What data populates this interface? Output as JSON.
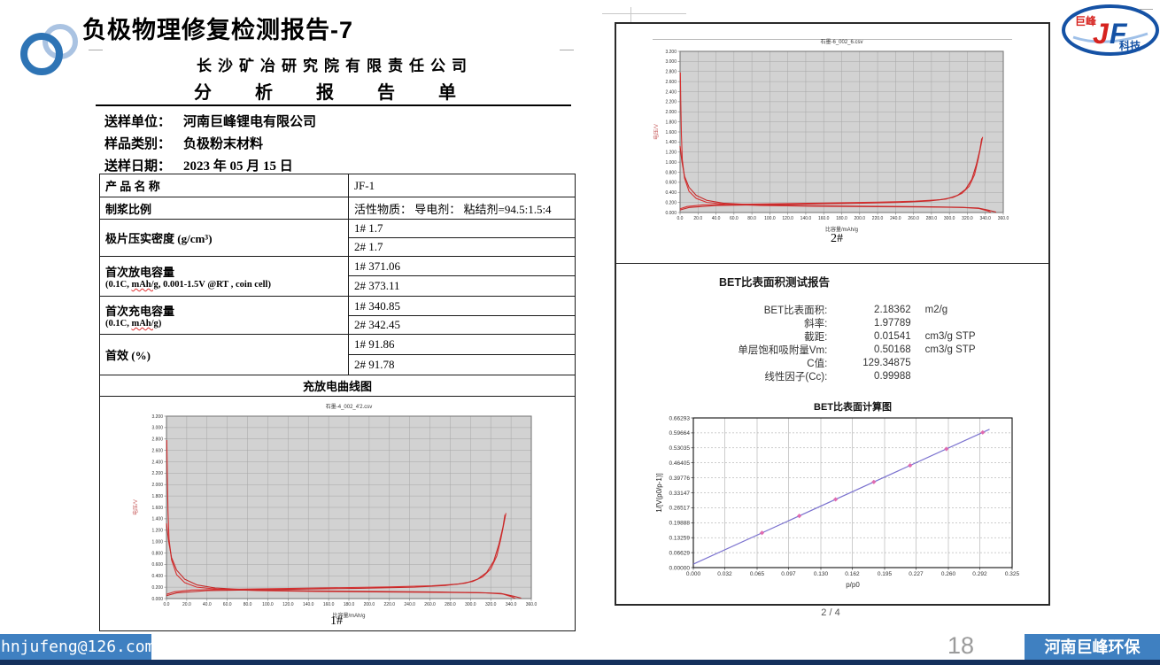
{
  "slide": {
    "title": "负极物理修复检测报告-7",
    "page_number": "18",
    "footer_email": "hnjufeng@126.com",
    "footer_company": "河南巨峰环保",
    "logo": {
      "top": "巨峰",
      "j": "J",
      "f": "F",
      "bottom": "科技"
    }
  },
  "report": {
    "company": "长沙矿冶研究院有限责任公司",
    "doc_title": "分 析 报 告 单",
    "fields": [
      {
        "label": "送样单位：",
        "value": "河南巨峰锂电有限公司"
      },
      {
        "label": "样品类别：",
        "value": "负极粉末材料"
      },
      {
        "label": "送样日期：",
        "value": "2023 年 05 月 15 日"
      }
    ],
    "table": {
      "rows": [
        {
          "label": "产 品 名 称",
          "v1": "JF-1"
        },
        {
          "label": "制浆比例",
          "v1": "活性物质： 导电剂： 粘结剂=94.5:1.5:4"
        },
        {
          "label": "极片压实密度 (g/cm³)",
          "v1": "1# 1.7",
          "v2": "2# 1.7"
        },
        {
          "label": "首次放电容量",
          "sub": [
            "(0.1C, ",
            "mAh/g",
            ", 0.001-1.5V @RT , coin cell)"
          ],
          "v1": "1# 371.06",
          "v2": "2# 373.11"
        },
        {
          "label": "首次充电容量",
          "sub": [
            "(0.1C, ",
            "mAh/g",
            ")"
          ],
          "v1": "1# 340.85",
          "v2": "2# 342.45"
        },
        {
          "label": "首效 (%)",
          "v1": "1# 91.86",
          "v2": "2# 91.78"
        }
      ],
      "section_header": "充放电曲线图"
    },
    "page2": {
      "bet_title": "BET比表面积测试报告",
      "bet_rows": [
        {
          "label": "BET比表面积:",
          "value": "2.18362",
          "unit": "m2/g"
        },
        {
          "label": "斜率:",
          "value": "1.97789",
          "unit": ""
        },
        {
          "label": "截距:",
          "value": "0.01541",
          "unit": "cm3/g STP"
        },
        {
          "label": "单层饱和吸附量Vm:",
          "value": "0.50168",
          "unit": "cm3/g STP"
        },
        {
          "label": "C值:",
          "value": "129.34875",
          "unit": ""
        },
        {
          "label": "线性因子(Cc):",
          "value": "0.99988",
          "unit": ""
        }
      ],
      "footer": "2 / 4"
    }
  },
  "chart_data": [
    {
      "id": "cycle-chart-1",
      "type": "line",
      "title": "石墨-4_002_4'2.csv",
      "caption": "1#",
      "xlabel": "比容量/mAh/g",
      "ylabel": "电压/V",
      "xlim": [
        0,
        360
      ],
      "ylim": [
        0,
        3.2
      ],
      "xticks": [
        "0.0",
        "20.0",
        "40.0",
        "60.0",
        "80.0",
        "100.0",
        "120.0",
        "140.0",
        "160.0",
        "180.0",
        "200.0",
        "220.0",
        "240.0",
        "260.0",
        "280.0",
        "300.0",
        "320.0",
        "340.0",
        "360.0"
      ],
      "yticks": [
        "0.000",
        "0.200",
        "0.400",
        "0.600",
        "0.800",
        "1.000",
        "1.200",
        "1.400",
        "1.600",
        "1.800",
        "2.000",
        "2.200",
        "2.400",
        "2.600",
        "2.800",
        "3.000",
        "3.200"
      ],
      "series": [
        {
          "name": "discharge-cycle1",
          "color": "#d73030",
          "points": [
            [
              0.3,
              2.78
            ],
            [
              0.8,
              2.2
            ],
            [
              1.5,
              1.55
            ],
            [
              2.5,
              1.05
            ],
            [
              5,
              0.68
            ],
            [
              10,
              0.42
            ],
            [
              18,
              0.28
            ],
            [
              30,
              0.2
            ],
            [
              50,
              0.165
            ],
            [
              90,
              0.14
            ],
            [
              150,
              0.125
            ],
            [
              220,
              0.115
            ],
            [
              280,
              0.108
            ],
            [
              315,
              0.1
            ],
            [
              332,
              0.08
            ],
            [
              341,
              0.03
            ],
            [
              344,
              0.005
            ]
          ]
        },
        {
          "name": "discharge-cycle2",
          "color": "#c62828",
          "points": [
            [
              0,
              1.32
            ],
            [
              2,
              1.02
            ],
            [
              5,
              0.72
            ],
            [
              10,
              0.5
            ],
            [
              18,
              0.34
            ],
            [
              30,
              0.24
            ],
            [
              48,
              0.185
            ],
            [
              80,
              0.155
            ],
            [
              140,
              0.135
            ],
            [
              210,
              0.125
            ],
            [
              270,
              0.115
            ],
            [
              310,
              0.105
            ],
            [
              330,
              0.09
            ],
            [
              343,
              0.04
            ],
            [
              350,
              0.008
            ]
          ]
        },
        {
          "name": "charge-cycle1",
          "color": "#d73030",
          "points": [
            [
              0,
              0.075
            ],
            [
              8,
              0.12
            ],
            [
              25,
              0.15
            ],
            [
              70,
              0.165
            ],
            [
              150,
              0.185
            ],
            [
              220,
              0.205
            ],
            [
              262,
              0.225
            ],
            [
              288,
              0.255
            ],
            [
              302,
              0.3
            ],
            [
              312,
              0.38
            ],
            [
              320,
              0.52
            ],
            [
              326,
              0.75
            ],
            [
              330,
              1.05
            ],
            [
              333,
              1.32
            ],
            [
              335,
              1.5
            ]
          ]
        },
        {
          "name": "charge-cycle2",
          "color": "#c62828",
          "points": [
            [
              0,
              0.05
            ],
            [
              10,
              0.1
            ],
            [
              40,
              0.14
            ],
            [
              110,
              0.16
            ],
            [
              190,
              0.18
            ],
            [
              245,
              0.2
            ],
            [
              275,
              0.23
            ],
            [
              295,
              0.27
            ],
            [
              307,
              0.34
            ],
            [
              316,
              0.46
            ],
            [
              323,
              0.66
            ],
            [
              328,
              0.95
            ],
            [
              332,
              1.25
            ],
            [
              334,
              1.47
            ]
          ]
        }
      ]
    },
    {
      "id": "cycle-chart-2",
      "type": "line",
      "title": "石墨-6_002_6.csv",
      "caption": "2#",
      "xlabel": "比容量/mAh/g",
      "ylabel": "电压/V",
      "xlim": [
        0,
        360
      ],
      "ylim": [
        0,
        3.2
      ],
      "xticks": [
        "0.0",
        "20.0",
        "40.0",
        "60.0",
        "80.0",
        "100.0",
        "120.0",
        "140.0",
        "160.0",
        "180.0",
        "200.0",
        "220.0",
        "240.0",
        "260.0",
        "280.0",
        "300.0",
        "320.0",
        "340.0",
        "360.0"
      ],
      "yticks": [
        "0.000",
        "0.200",
        "0.400",
        "0.600",
        "0.800",
        "1.000",
        "1.200",
        "1.400",
        "1.600",
        "1.800",
        "2.000",
        "2.200",
        "2.400",
        "2.600",
        "2.800",
        "3.000",
        "3.200"
      ],
      "series": [
        {
          "name": "discharge-cycle1",
          "color": "#d73030",
          "points": [
            [
              0.3,
              2.78
            ],
            [
              0.8,
              2.2
            ],
            [
              1.5,
              1.55
            ],
            [
              2.5,
              1.05
            ],
            [
              5,
              0.68
            ],
            [
              10,
              0.42
            ],
            [
              18,
              0.28
            ],
            [
              30,
              0.2
            ],
            [
              50,
              0.165
            ],
            [
              90,
              0.14
            ],
            [
              150,
              0.125
            ],
            [
              220,
              0.115
            ],
            [
              280,
              0.108
            ],
            [
              315,
              0.1
            ],
            [
              333,
              0.08
            ],
            [
              343,
              0.03
            ],
            [
              346,
              0.005
            ]
          ]
        },
        {
          "name": "discharge-cycle2",
          "color": "#c62828",
          "points": [
            [
              0,
              1.32
            ],
            [
              2,
              1.02
            ],
            [
              5,
              0.72
            ],
            [
              10,
              0.5
            ],
            [
              18,
              0.34
            ],
            [
              30,
              0.24
            ],
            [
              48,
              0.185
            ],
            [
              80,
              0.155
            ],
            [
              140,
              0.135
            ],
            [
              210,
              0.125
            ],
            [
              270,
              0.115
            ],
            [
              310,
              0.105
            ],
            [
              332,
              0.09
            ],
            [
              345,
              0.04
            ],
            [
              352,
              0.008
            ]
          ]
        },
        {
          "name": "charge-cycle1",
          "color": "#d73030",
          "points": [
            [
              0,
              0.075
            ],
            [
              8,
              0.12
            ],
            [
              25,
              0.15
            ],
            [
              70,
              0.165
            ],
            [
              150,
              0.185
            ],
            [
              220,
              0.205
            ],
            [
              262,
              0.225
            ],
            [
              290,
              0.255
            ],
            [
              304,
              0.3
            ],
            [
              314,
              0.38
            ],
            [
              322,
              0.52
            ],
            [
              328,
              0.75
            ],
            [
              332,
              1.05
            ],
            [
              335,
              1.32
            ],
            [
              337,
              1.5
            ]
          ]
        },
        {
          "name": "charge-cycle2",
          "color": "#c62828",
          "points": [
            [
              0,
              0.05
            ],
            [
              10,
              0.1
            ],
            [
              40,
              0.14
            ],
            [
              110,
              0.16
            ],
            [
              190,
              0.18
            ],
            [
              245,
              0.2
            ],
            [
              278,
              0.23
            ],
            [
              297,
              0.27
            ],
            [
              309,
              0.34
            ],
            [
              318,
              0.46
            ],
            [
              325,
              0.66
            ],
            [
              330,
              0.95
            ],
            [
              334,
              1.25
            ],
            [
              336,
              1.47
            ]
          ]
        }
      ]
    },
    {
      "id": "bet-plot",
      "type": "scatter",
      "title": "BET比表面计算图",
      "xlabel": "p/p0",
      "ylabel": "1/[V(p0/p-1)]",
      "xlim": [
        0,
        0.325
      ],
      "ylim": [
        0,
        0.66293
      ],
      "xticks": [
        "0.000",
        "0.032",
        "0.065",
        "0.097",
        "0.130",
        "0.162",
        "0.195",
        "0.227",
        "0.260",
        "0.292",
        "0.325"
      ],
      "yticks": [
        "0.00000",
        "0.06629",
        "0.13259",
        "0.19888",
        "0.26517",
        "0.33147",
        "0.39776",
        "0.46405",
        "0.53035",
        "0.59664",
        "0.66293"
      ],
      "fit_line": {
        "slope": 1.97789,
        "intercept": 0.01541,
        "x_start": 0,
        "x_end": 0.302,
        "color": "#7b72cf"
      },
      "points": {
        "color": "#e06bb0",
        "data": [
          [
            0.07,
            0.1539
          ],
          [
            0.108,
            0.229
          ],
          [
            0.145,
            0.3022
          ],
          [
            0.184,
            0.3793
          ],
          [
            0.221,
            0.4525
          ],
          [
            0.258,
            0.5257
          ],
          [
            0.295,
            0.5989
          ]
        ]
      }
    }
  ]
}
